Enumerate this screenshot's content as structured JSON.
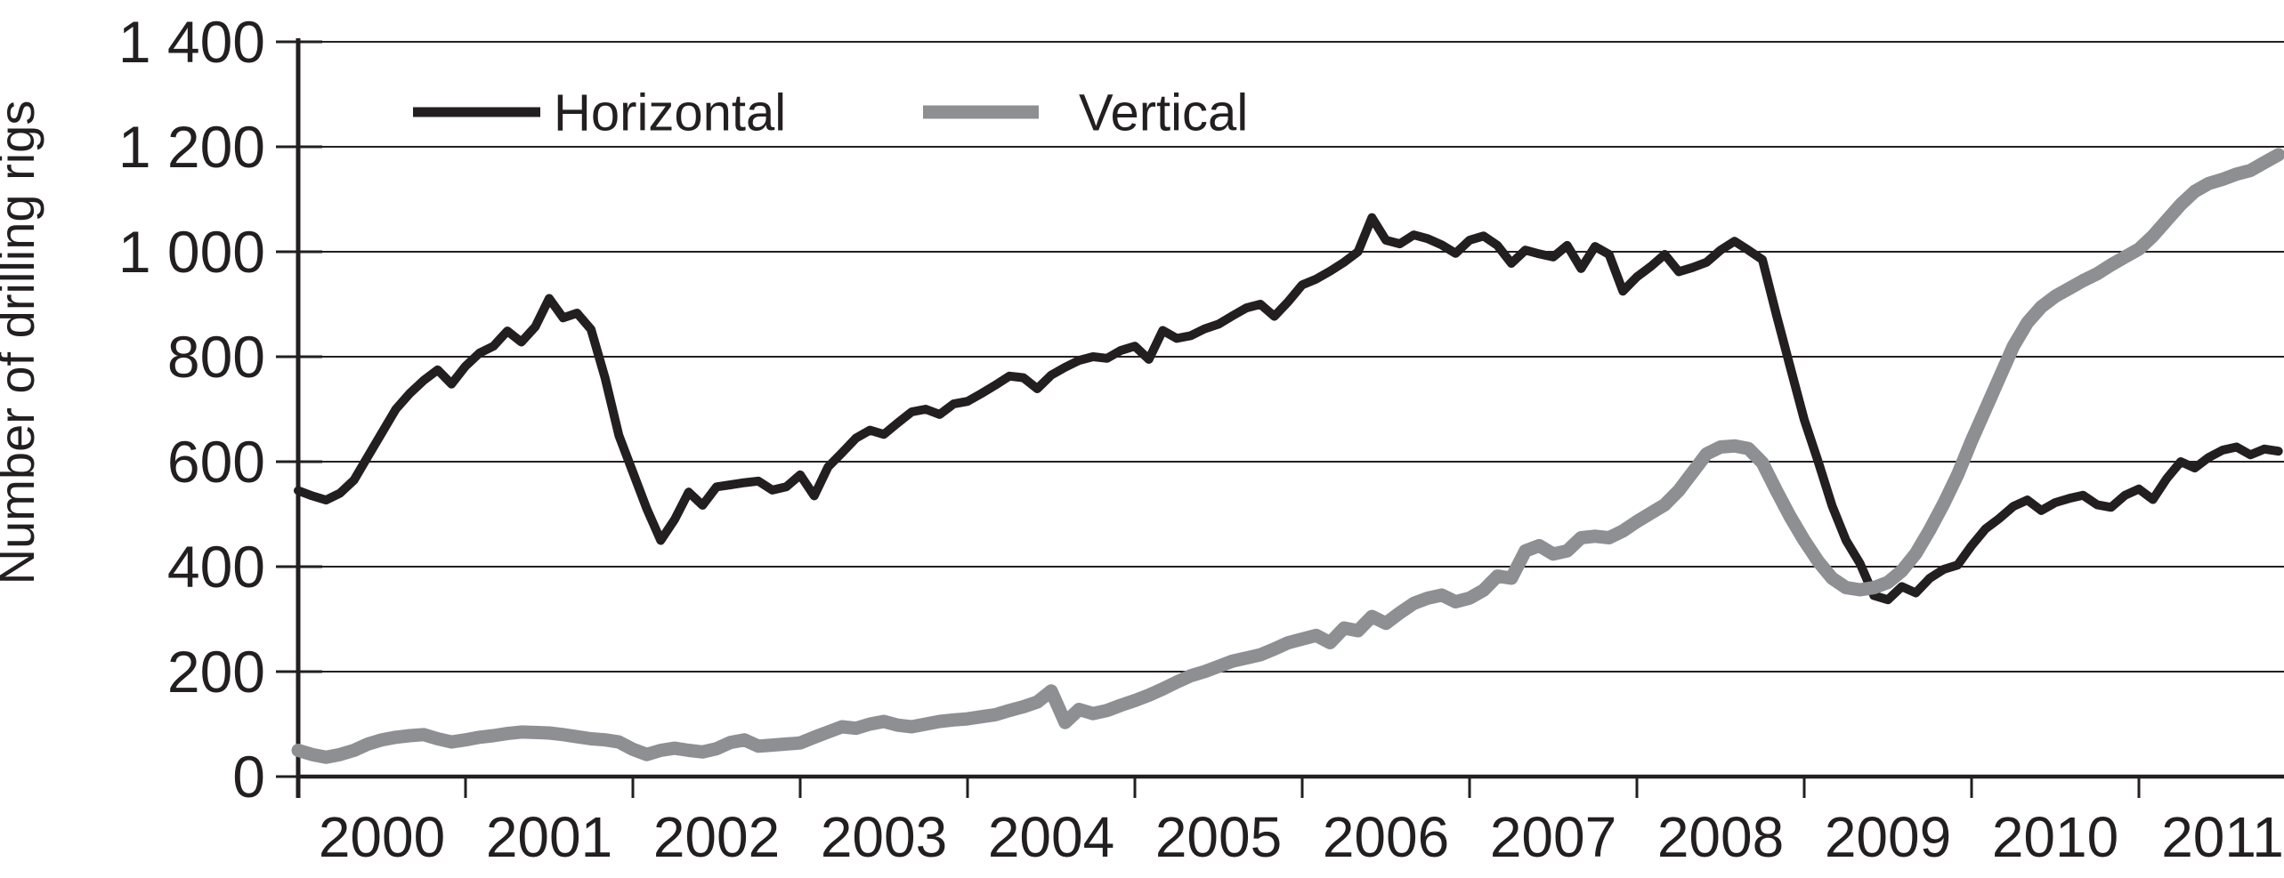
{
  "chart_data": {
    "type": "line",
    "title": "",
    "xlabel": "",
    "ylabel": "Number of drilling rigs",
    "ylim": [
      0,
      1400
    ],
    "y_tick_step": 200,
    "y_tick_labels": [
      "0",
      "200",
      "400",
      "600",
      "800",
      "1 000",
      "1 200",
      "1 400"
    ],
    "x_tick_labels": [
      "2000",
      "2001",
      "2002",
      "2003",
      "2004",
      "2005",
      "2006",
      "2007",
      "2008",
      "2009",
      "2010",
      "2011"
    ],
    "x_start_year": 2000,
    "frequency": "monthly",
    "grid": "horizontal",
    "legend_position": "top-inside",
    "axis_color": "#231f20",
    "series": [
      {
        "name": "Horizontal",
        "color": "#231f20",
        "stroke_width": 10,
        "values": [
          545,
          535,
          527,
          540,
          565,
          610,
          655,
          700,
          730,
          755,
          775,
          748,
          782,
          807,
          820,
          849,
          828,
          857,
          911,
          874,
          883,
          852,
          760,
          650,
          580,
          510,
          450,
          490,
          542,
          517,
          552,
          556,
          560,
          563,
          546,
          552,
          575,
          535,
          590,
          617,
          645,
          660,
          652,
          674,
          695,
          700,
          690,
          710,
          715,
          730,
          746,
          763,
          760,
          739,
          765,
          780,
          793,
          800,
          797,
          812,
          820,
          795,
          850,
          835,
          840,
          853,
          862,
          878,
          893,
          900,
          877,
          905,
          937,
          948,
          963,
          980,
          1000,
          1065,
          1022,
          1015,
          1032,
          1025,
          1013,
          997,
          1022,
          1030,
          1012,
          978,
          1003,
          996,
          990,
          1012,
          968,
          1010,
          995,
          925,
          952,
          972,
          995,
          962,
          970,
          980,
          1003,
          1020,
          1003,
          985,
          880,
          780,
          680,
          600,
          516,
          450,
          406,
          345,
          337,
          362,
          350,
          378,
          395,
          403,
          440,
          472,
          492,
          515,
          527,
          507,
          522,
          530,
          536,
          518,
          513,
          536,
          548,
          528,
          568,
          600,
          588,
          608,
          622,
          628,
          613,
          624,
          620
        ]
      },
      {
        "name": "Vertical",
        "color": "#8d8f92",
        "stroke_width": 15,
        "values": [
          50,
          42,
          37,
          42,
          50,
          62,
          70,
          75,
          78,
          80,
          72,
          66,
          70,
          75,
          78,
          82,
          85,
          84,
          83,
          80,
          76,
          72,
          70,
          66,
          52,
          42,
          50,
          54,
          50,
          47,
          53,
          65,
          70,
          58,
          60,
          62,
          64,
          75,
          85,
          95,
          92,
          100,
          105,
          98,
          95,
          100,
          105,
          108,
          110,
          114,
          118,
          126,
          133,
          142,
          163,
          103,
          128,
          120,
          126,
          136,
          145,
          155,
          167,
          180,
          192,
          200,
          210,
          220,
          226,
          232,
          243,
          255,
          262,
          269,
          255,
          283,
          278,
          305,
          292,
          312,
          330,
          340,
          346,
          333,
          340,
          355,
          382,
          378,
          430,
          440,
          424,
          430,
          455,
          458,
          455,
          468,
          486,
          502,
          518,
          545,
          580,
          615,
          628,
          630,
          625,
          598,
          545,
          495,
          450,
          410,
          378,
          360,
          356,
          360,
          370,
          392,
          425,
          470,
          520,
          575,
          640,
          700,
          760,
          820,
          865,
          895,
          915,
          930,
          945,
          958,
          975,
          990,
          1005,
          1030,
          1060,
          1090,
          1115,
          1130,
          1138,
          1148,
          1155,
          1170,
          1185
        ]
      }
    ]
  },
  "legend": {
    "items": [
      {
        "label": "Horizontal",
        "color": "#231f20",
        "swatch_thickness": 11
      },
      {
        "label": "Vertical",
        "color": "#8d8f92",
        "swatch_thickness": 15
      }
    ]
  },
  "y_axis": {
    "title": "Number of drilling rigs"
  }
}
